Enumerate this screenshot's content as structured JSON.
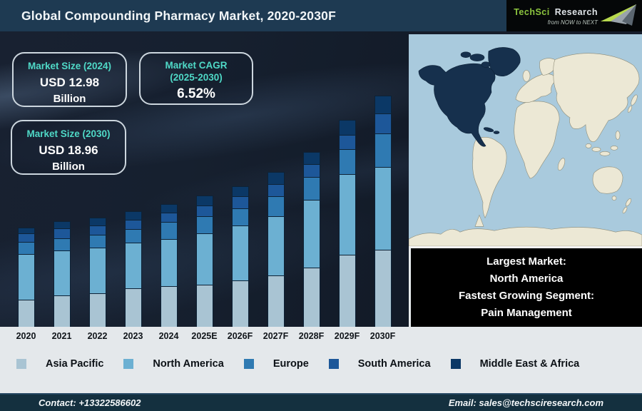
{
  "title": "Global Compounding Pharmacy Market, 2020-2030F",
  "logo": {
    "name_primary": "TechSci",
    "name_secondary": "Research",
    "tagline": "from NOW to NEXT",
    "accent_green": "#8dc63f"
  },
  "stat_boxes": [
    {
      "label": "Market Size (2024)",
      "value": "USD 12.98",
      "unit": "Billion"
    },
    {
      "label": "Market CAGR",
      "label2": "(2025-2030)",
      "value": "6.52%"
    },
    {
      "label": "Market Size (2030)",
      "value": "USD 18.96",
      "unit": "Billion"
    }
  ],
  "chart_data": {
    "type": "bar",
    "stacked": true,
    "title": "Global Compounding Pharmacy Market, 2020-2030F",
    "categories": [
      "2020",
      "2021",
      "2022",
      "2023",
      "2024",
      "2025E",
      "2026F",
      "2027F",
      "2028F",
      "2029F",
      "2030F"
    ],
    "series": [
      {
        "name": "Asia Pacific",
        "color": "#a9c4d3",
        "values": [
          38,
          44,
          47,
          54,
          57,
          59,
          65,
          72,
          83,
          101,
          108
        ]
      },
      {
        "name": "North America",
        "color": "#6cb0d2",
        "values": [
          64,
          63,
          64,
          64,
          66,
          72,
          77,
          83,
          95,
          113,
          116
        ]
      },
      {
        "name": "Europe",
        "color": "#2f7ab2",
        "values": [
          17,
          17,
          18,
          19,
          24,
          24,
          24,
          28,
          32,
          35,
          47
        ]
      },
      {
        "name": "South America",
        "color": "#1d5799",
        "values": [
          12,
          14,
          13,
          13,
          13,
          15,
          17,
          17,
          18,
          20,
          28
        ]
      },
      {
        "name": "Middle East & Africa",
        "color": "#0b3866",
        "values": [
          8,
          10,
          11,
          12,
          12,
          14,
          14,
          17,
          17,
          21,
          25
        ]
      }
    ],
    "unit": "relative segment height in px (chart displays no numeric value axis)",
    "known_values": {
      "market_size_2024_usd_billion": 12.98,
      "market_size_2030_usd_billion": 18.96,
      "cagr_2025_2030_percent": 6.52
    },
    "xlabel": "",
    "ylabel": "",
    "grid": false,
    "legend_position": "bottom",
    "stack_order_bottom_to_top": [
      "Asia Pacific",
      "North America",
      "Europe",
      "South America",
      "Middle East & Africa"
    ]
  },
  "map": {
    "highlighted_region": "North America",
    "highlight_color": "#16304d",
    "ocean_color": "#a9cadd",
    "land_color": "#ece8d5"
  },
  "callout": {
    "lines": [
      "Largest Market:",
      "North America",
      "Fastest Growing Segment:",
      "Pain Management"
    ]
  },
  "footer": {
    "contact": "Contact: +13322586602",
    "email": "Email: sales@techsciresearch.com"
  }
}
